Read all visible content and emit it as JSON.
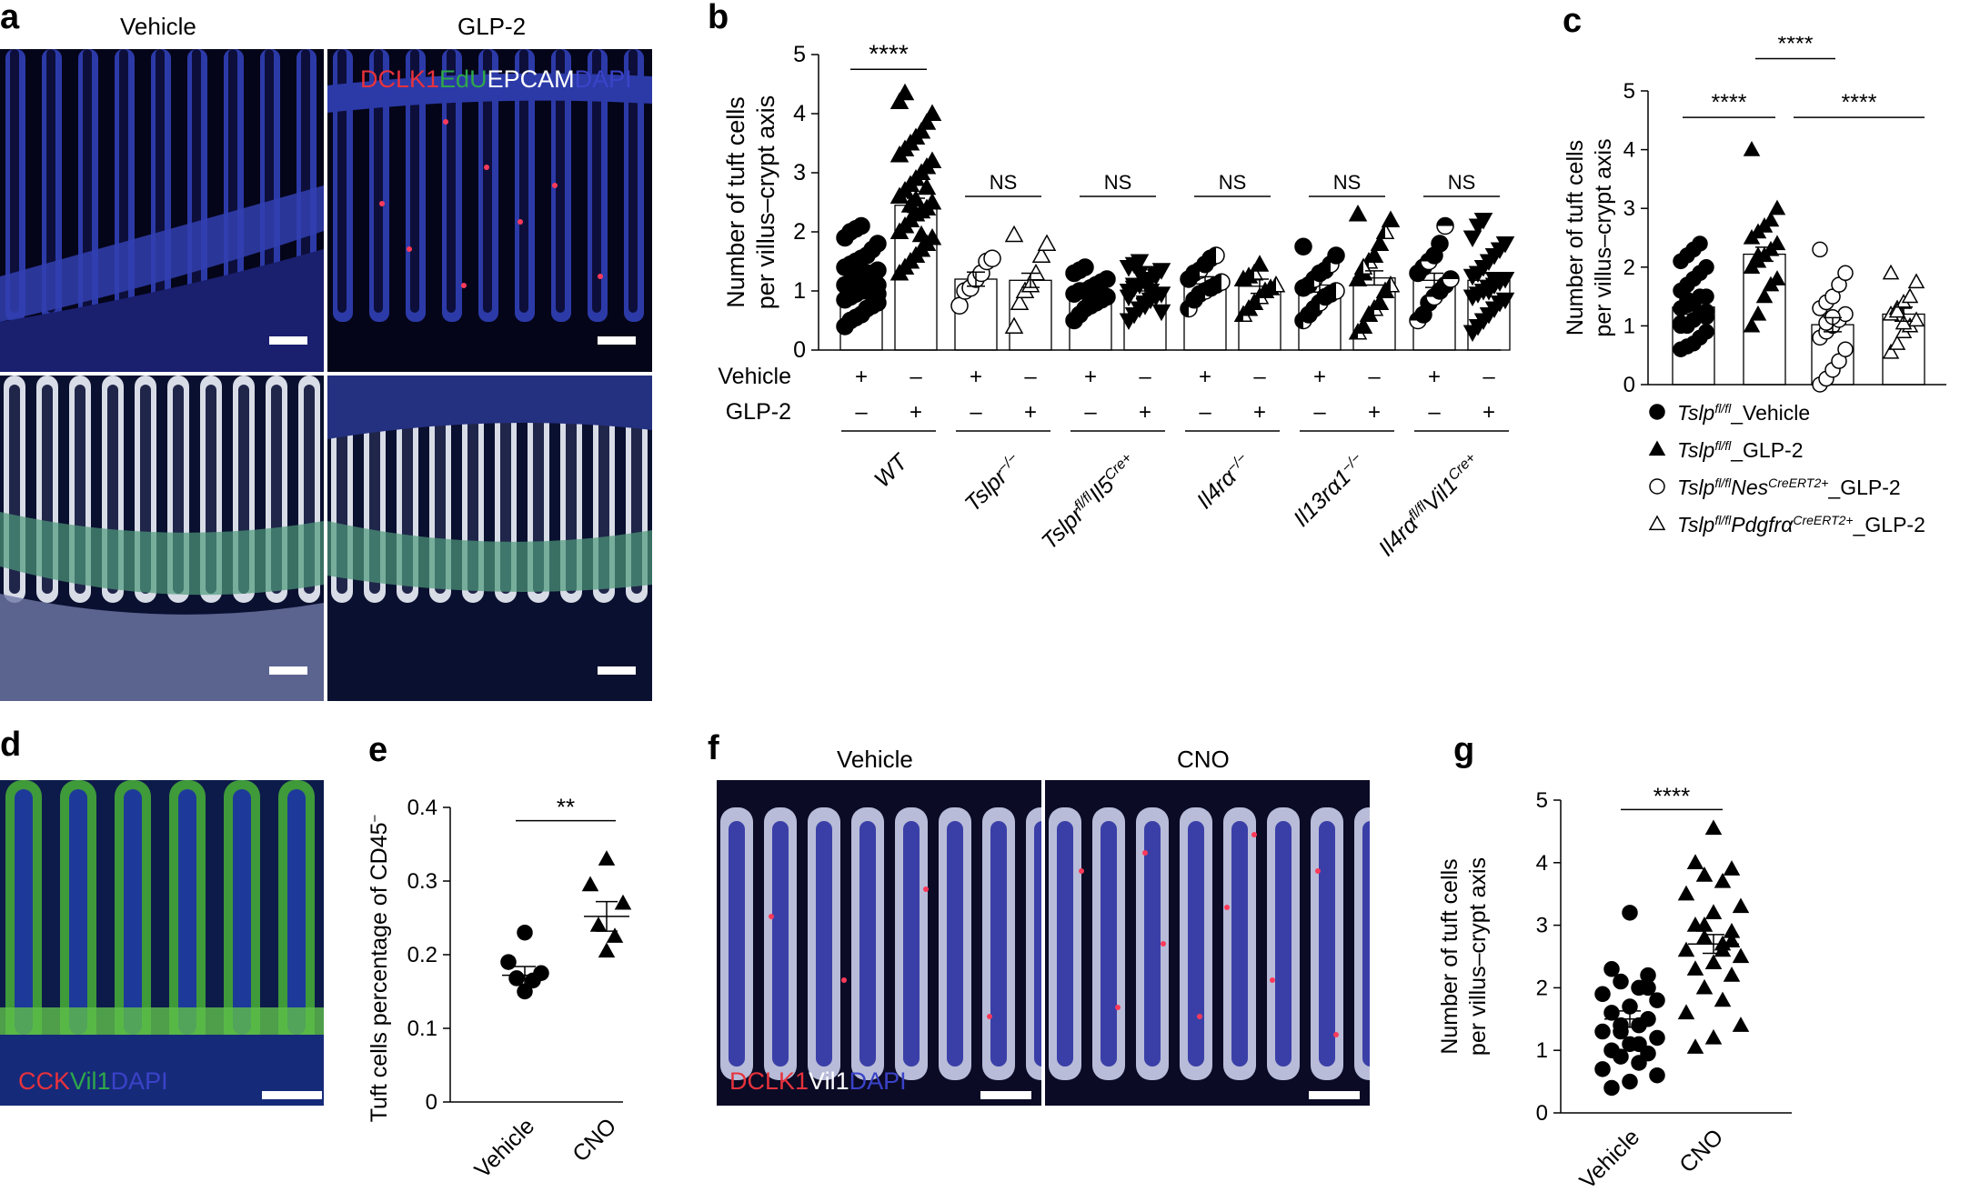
{
  "panels": {
    "a": {
      "label": "a",
      "columns": [
        "Vehicle",
        "GLP-2"
      ],
      "stain": [
        {
          "text": "DCLK1",
          "color": "#e8323c"
        },
        {
          "text": "EdU",
          "color": "#2ea84a"
        },
        {
          "text": "EPCAM",
          "color": "#ffffff"
        },
        {
          "text": "DAPI",
          "color": "#3a43c8"
        }
      ]
    },
    "d": {
      "label": "d",
      "stain": [
        {
          "text": "CCK",
          "color": "#e8323c"
        },
        {
          "text": "Vil1",
          "color": "#2ea84a"
        },
        {
          "text": "DAPI",
          "color": "#3a43c8"
        }
      ]
    },
    "f": {
      "label": "f",
      "columns": [
        "Vehicle",
        "CNO"
      ],
      "stain": [
        {
          "text": "DCLK1",
          "color": "#e8323c"
        },
        {
          "text": "Vil1",
          "color": "#ffffff"
        },
        {
          "text": "DAPI",
          "color": "#3a43c8"
        }
      ]
    }
  },
  "chart_data": [
    {
      "id": "b",
      "label": "b",
      "type": "scatter",
      "ylabel": [
        "Number of tuft cells",
        "per villus–crypt axis"
      ],
      "ylim": [
        0,
        5
      ],
      "yticks": [
        "0",
        "1",
        "2",
        "3",
        "4",
        "5"
      ],
      "row_labels": [
        "Vehicle",
        "GLP-2"
      ],
      "groups": [
        {
          "name": "WT",
          "name_sup": "",
          "pairs": [
            [
              "+",
              "–"
            ],
            [
              "–",
              "+"
            ]
          ],
          "sig": "****",
          "means": [
            1.22,
            2.45
          ],
          "fill": "black",
          "shapes": [
            "circle",
            "triangle"
          ]
        },
        {
          "name": "Tslpr",
          "name_sup": "−/−",
          "pairs": [
            [
              "+",
              "–"
            ],
            [
              "–",
              "+"
            ]
          ],
          "sig": "NS",
          "means": [
            1.2,
            1.18
          ],
          "fill": "white",
          "shapes": [
            "circle",
            "triangle"
          ]
        },
        {
          "name": "Tslpr",
          "name_sup": "fl/fl",
          "name2": "Il5",
          "name2_sup": "Cre+",
          "pairs": [
            [
              "+",
              "–"
            ],
            [
              "–",
              "+"
            ]
          ],
          "sig": "NS",
          "means": [
            0.95,
            1.0
          ],
          "fill": "black",
          "shapes": [
            "circle",
            "triangle-down"
          ]
        },
        {
          "name": "Il4rα",
          "name_sup": "−/−",
          "pairs": [
            [
              "+",
              "–"
            ],
            [
              "–",
              "+"
            ]
          ],
          "sig": "NS",
          "means": [
            1.12,
            1.08
          ],
          "fill": "half",
          "shapes": [
            "circle",
            "triangle"
          ]
        },
        {
          "name": "Il13rα1",
          "name_sup": "−/−",
          "pairs": [
            [
              "+",
              "–"
            ],
            [
              "–",
              "+"
            ]
          ],
          "sig": "NS",
          "means": [
            1.1,
            1.22
          ],
          "fill": "half",
          "shapes": [
            "circle",
            "triangle"
          ]
        },
        {
          "name": "Il4rα",
          "name_sup": "fl/fl",
          "name2": "Vil1",
          "name2_sup": "Cre+",
          "pairs": [
            [
              "+",
              "–"
            ],
            [
              "–",
              "+"
            ]
          ],
          "sig": "NS",
          "means": [
            1.18,
            1.18
          ],
          "fill": "halfh",
          "shapes": [
            "circle",
            "triangle-down"
          ]
        }
      ],
      "points": [
        [
          0.4,
          0.5,
          0.55,
          0.6,
          0.7,
          0.75,
          0.8,
          0.85,
          0.9,
          0.95,
          1.0,
          1.0,
          1.05,
          1.1,
          1.1,
          1.15,
          1.2,
          1.25,
          1.3,
          1.3,
          1.35,
          1.4,
          1.45,
          1.5,
          1.55,
          1.6,
          1.7,
          1.8,
          1.9,
          2.0,
          2.05,
          2.1,
          1.25,
          1.15,
          0.95
        ],
        [
          1.3,
          1.4,
          1.5,
          1.6,
          1.7,
          1.8,
          1.9,
          2.0,
          2.1,
          2.2,
          2.3,
          2.35,
          2.4,
          2.5,
          2.6,
          2.7,
          2.8,
          2.9,
          3.0,
          3.1,
          3.2,
          3.3,
          3.4,
          3.5,
          3.6,
          3.7,
          3.85,
          4.0,
          4.2,
          4.35,
          2.45,
          2.55,
          1.95,
          2.75
        ],
        [
          0.75,
          1.0,
          1.05,
          1.2,
          1.3,
          1.5,
          1.55
        ],
        [
          0.4,
          0.8,
          1.0,
          1.1,
          1.3,
          1.6,
          1.8,
          1.95
        ],
        [
          0.5,
          0.6,
          0.7,
          0.75,
          0.8,
          0.85,
          0.9,
          0.95,
          1.0,
          1.0,
          1.05,
          1.1,
          1.15,
          1.2,
          1.3,
          1.35,
          1.4,
          0.9,
          1.1
        ],
        [
          0.5,
          0.6,
          0.7,
          0.8,
          0.85,
          0.9,
          0.95,
          1.0,
          1.05,
          1.1,
          1.15,
          1.2,
          1.3,
          1.35,
          1.4,
          1.45,
          1.5,
          0.75,
          1.0,
          1.25,
          0.65,
          0.9,
          1.1,
          1.3
        ],
        [
          0.7,
          0.85,
          0.95,
          1.0,
          1.05,
          1.1,
          1.15,
          1.2,
          1.3,
          1.35,
          1.45,
          1.55,
          1.6
        ],
        [
          0.6,
          0.7,
          0.8,
          0.9,
          1.0,
          1.05,
          1.1,
          1.2,
          1.25,
          1.3,
          1.45
        ],
        [
          0.5,
          0.6,
          0.7,
          0.8,
          0.9,
          0.95,
          1.0,
          1.05,
          1.1,
          1.2,
          1.3,
          1.35,
          1.45,
          1.6,
          1.75
        ],
        [
          0.3,
          0.4,
          0.6,
          0.7,
          0.8,
          1.0,
          1.1,
          1.2,
          1.3,
          1.5,
          1.6,
          1.8,
          2.0,
          2.2,
          2.3,
          1.4
        ],
        [
          0.5,
          0.6,
          0.8,
          0.9,
          1.0,
          1.1,
          1.2,
          1.3,
          1.4,
          1.5,
          1.6,
          1.8,
          2.1
        ],
        [
          0.3,
          0.4,
          0.5,
          0.6,
          0.7,
          0.8,
          0.85,
          0.9,
          0.95,
          1.0,
          1.05,
          1.1,
          1.15,
          1.2,
          1.25,
          1.3,
          1.4,
          1.5,
          1.6,
          1.7,
          1.8,
          1.9,
          2.1,
          2.2,
          1.0,
          1.2
        ]
      ]
    },
    {
      "id": "c",
      "label": "c",
      "type": "scatter",
      "ylabel": [
        "Number of tuft cells",
        "per villus–crypt axis"
      ],
      "ylim": [
        0,
        5
      ],
      "yticks": [
        "0",
        "1",
        "2",
        "3",
        "4",
        "5"
      ],
      "means": [
        1.32,
        2.22,
        1.02,
        1.2
      ],
      "shapes": [
        "circle-filled",
        "triangle-filled",
        "circle-open",
        "triangle-open"
      ],
      "points": [
        [
          0.6,
          0.65,
          0.7,
          0.8,
          0.9,
          1.0,
          1.0,
          1.1,
          1.2,
          1.25,
          1.3,
          1.35,
          1.4,
          1.5,
          1.5,
          1.6,
          1.7,
          1.8,
          1.9,
          2.0,
          2.1,
          2.2,
          2.3,
          2.4,
          1.15,
          1.05,
          1.45
        ],
        [
          1.0,
          1.2,
          1.5,
          1.7,
          1.8,
          2.0,
          2.1,
          2.2,
          2.3,
          2.4,
          2.5,
          2.6,
          2.7,
          2.8,
          3.0,
          4.0,
          2.2
        ],
        [
          0.0,
          0.1,
          0.25,
          0.4,
          0.6,
          0.8,
          0.9,
          1.0,
          1.1,
          1.2,
          1.3,
          1.4,
          1.5,
          1.7,
          1.9,
          2.3,
          1.05,
          1.15
        ],
        [
          0.55,
          0.7,
          0.9,
          1.0,
          1.1,
          1.2,
          1.3,
          1.4,
          1.5,
          1.75,
          1.9,
          1.25,
          1.05
        ]
      ],
      "sig": [
        "****",
        "****",
        "****"
      ],
      "legend": [
        {
          "symbol": "circle-filled",
          "name": "Tslp",
          "sup": "fl/fl",
          "rest": "_Vehicle"
        },
        {
          "symbol": "triangle-filled",
          "name": "Tslp",
          "sup": "fl/fl",
          "rest": "_GLP-2"
        },
        {
          "symbol": "circle-open",
          "name": "Tslp",
          "sup": "fl/fl",
          "name2": "Nes",
          "sup2": "CreERT2+",
          "rest": "_GLP-2"
        },
        {
          "symbol": "triangle-open",
          "name": "Tslp",
          "sup": "fl/fl",
          "name2": "Pdgfrα",
          "sup2": "CreERT2+",
          "rest": "_GLP-2"
        }
      ]
    },
    {
      "id": "e",
      "label": "e",
      "type": "scatter",
      "ylabel": [
        "Tuft cells percentage of CD45",
        "−"
      ],
      "ylim": [
        0,
        0.4
      ],
      "yticks": [
        "0",
        "0.1",
        "0.2",
        "0.3",
        "0.4"
      ],
      "categories": [
        "Vehicle",
        "CNO"
      ],
      "sig": "**",
      "means": [
        0.172,
        0.252
      ],
      "sem": [
        0.012,
        0.02
      ],
      "shapes": [
        "circle",
        "triangle"
      ],
      "points": [
        [
          0.23,
          0.19,
          0.175,
          0.168,
          0.165,
          0.15
        ],
        [
          0.33,
          0.295,
          0.27,
          0.24,
          0.225,
          0.205
        ]
      ]
    },
    {
      "id": "g",
      "label": "g",
      "type": "scatter",
      "ylabel": [
        "Number of tuft cells",
        "per villus–crypt axis"
      ],
      "ylim": [
        0,
        5
      ],
      "yticks": [
        "0",
        "1",
        "2",
        "3",
        "4",
        "5"
      ],
      "categories": [
        "Vehicle",
        "CNO"
      ],
      "sig": "****",
      "means": [
        1.5,
        2.7
      ],
      "sem": [
        0.13,
        0.15
      ],
      "shapes": [
        "circle",
        "triangle"
      ],
      "points": [
        [
          3.2,
          2.3,
          2.2,
          2.1,
          2.0,
          1.9,
          1.8,
          1.7,
          1.6,
          1.5,
          1.4,
          1.4,
          1.3,
          1.2,
          1.1,
          1.0,
          0.95,
          0.9,
          0.8,
          0.7,
          0.6,
          0.5,
          0.4,
          2.0,
          1.3,
          1.1
        ],
        [
          4.55,
          4.0,
          3.9,
          3.8,
          3.7,
          3.5,
          3.3,
          3.2,
          3.0,
          2.9,
          2.8,
          2.7,
          2.6,
          2.5,
          2.4,
          2.3,
          2.2,
          2.0,
          1.8,
          1.6,
          1.4,
          1.2,
          1.05,
          2.75,
          3.0,
          2.6
        ]
      ]
    }
  ]
}
